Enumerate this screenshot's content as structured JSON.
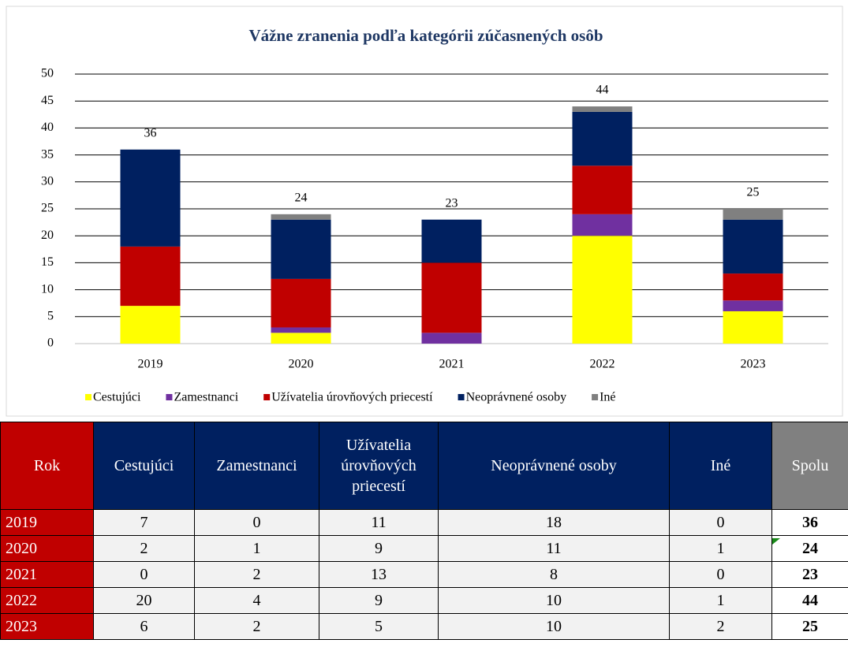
{
  "chart_data": {
    "type": "stacked-bar",
    "title": "Vážne zranenia podľa kategórii zúčasnených osôb",
    "categories": [
      "2019",
      "2020",
      "2021",
      "2022",
      "2023"
    ],
    "series": [
      {
        "name": "Cestujúci",
        "color": "#ffff00",
        "values": [
          7,
          2,
          0,
          20,
          6
        ]
      },
      {
        "name": "Zamestnanci",
        "color": "#7030a0",
        "values": [
          0,
          1,
          2,
          4,
          2
        ]
      },
      {
        "name": "Užívatelia úrovňových priecestí",
        "color": "#c00000",
        "values": [
          11,
          9,
          13,
          9,
          5
        ]
      },
      {
        "name": "Neoprávnené osoby",
        "color": "#002060",
        "values": [
          18,
          11,
          8,
          10,
          10
        ]
      },
      {
        "name": "Iné",
        "color": "#808080",
        "values": [
          0,
          1,
          0,
          1,
          2
        ]
      }
    ],
    "totals": [
      36,
      24,
      23,
      44,
      25
    ],
    "ylim": [
      0,
      50
    ],
    "yticks": [
      0,
      5,
      10,
      15,
      20,
      25,
      30,
      35,
      40,
      45,
      50
    ],
    "grid": true,
    "legend": "bottom"
  },
  "table": {
    "header": [
      "Rok",
      "Cestujúci",
      "Zamestnanci",
      "Užívatelia úrovňových priecestí",
      "Neoprávnené osoby",
      "Iné",
      "Spolu"
    ],
    "rows": [
      [
        "2019",
        7,
        0,
        11,
        18,
        0,
        36
      ],
      [
        "2020",
        2,
        1,
        9,
        11,
        1,
        24
      ],
      [
        "2021",
        0,
        2,
        13,
        8,
        0,
        23
      ],
      [
        "2022",
        20,
        4,
        9,
        10,
        1,
        44
      ],
      [
        "2023",
        6,
        2,
        5,
        10,
        2,
        25
      ]
    ]
  }
}
